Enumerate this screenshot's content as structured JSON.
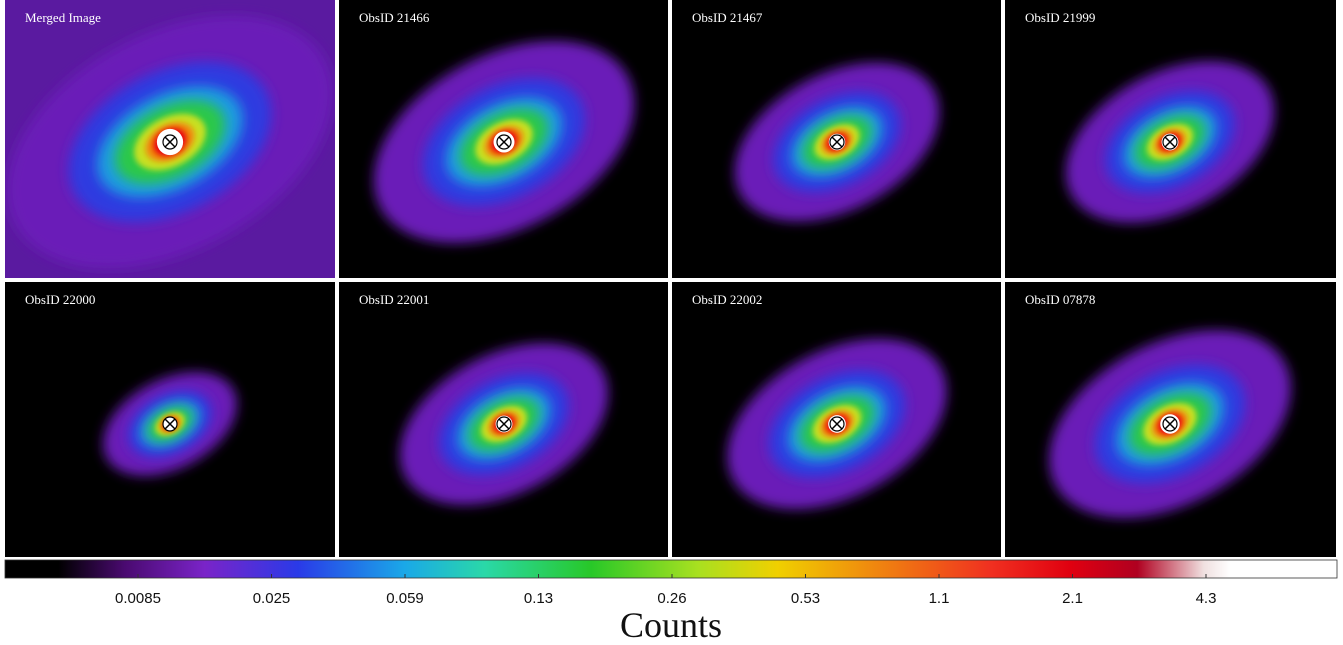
{
  "panels": [
    {
      "label": "Merged Image"
    },
    {
      "label": "ObsID 21466"
    },
    {
      "label": "ObsID 21467"
    },
    {
      "label": "ObsID 21999"
    },
    {
      "label": "ObsID 22000"
    },
    {
      "label": "ObsID 22001"
    },
    {
      "label": "ObsID 22002"
    },
    {
      "label": "ObsID 07878"
    }
  ],
  "colorbar": {
    "ticks": [
      0.0085,
      0.025,
      0.059,
      0.13,
      0.26,
      0.53,
      1.1,
      2.1,
      4.3
    ],
    "label": "Counts"
  }
}
